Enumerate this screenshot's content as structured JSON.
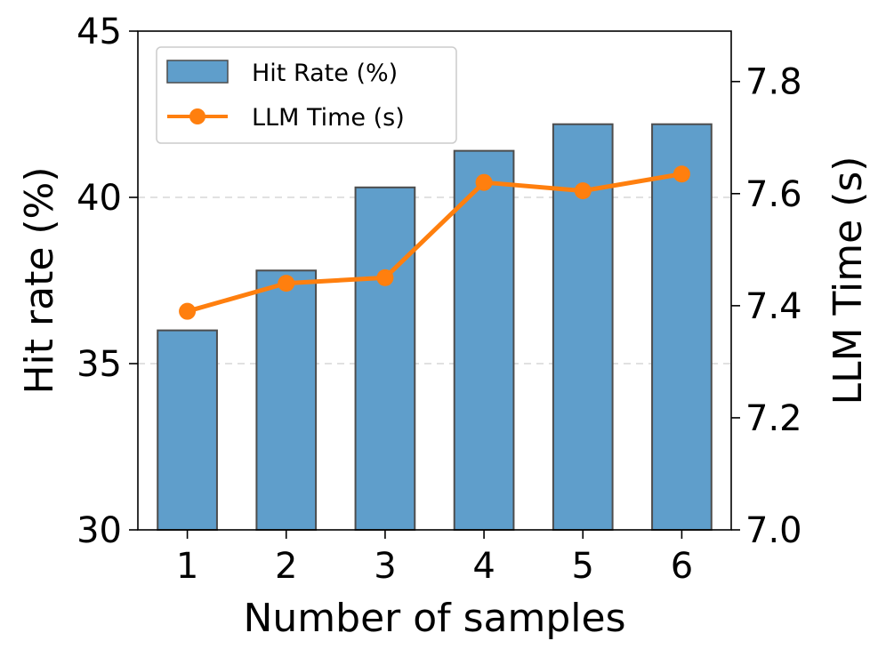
{
  "chart_data": {
    "type": "bar+line",
    "xlabel": "Number of samples",
    "categories": [
      "1",
      "2",
      "3",
      "4",
      "5",
      "6"
    ],
    "y_left": {
      "label": "Hit rate (%)",
      "range": [
        30,
        45
      ],
      "ticks": [
        "30",
        "35",
        "40",
        "45"
      ]
    },
    "y_right": {
      "label": "LLM Time (s)",
      "range": [
        7.0,
        7.89
      ],
      "ticks": [
        "7.0",
        "7.2",
        "7.4",
        "7.6",
        "7.8"
      ]
    },
    "series": [
      {
        "name": "Hit Rate (%)",
        "kind": "bar",
        "axis": "left",
        "color": "#5f9ecb",
        "values": [
          36.0,
          37.8,
          40.3,
          41.4,
          42.2,
          42.2
        ]
      },
      {
        "name": "LLM Time (s)",
        "kind": "line",
        "axis": "right",
        "color": "#ff7f0e",
        "values": [
          7.39,
          7.44,
          7.45,
          7.62,
          7.605,
          7.635
        ]
      }
    ],
    "grid": "horizontal dashed",
    "legend_position": "top-left"
  }
}
